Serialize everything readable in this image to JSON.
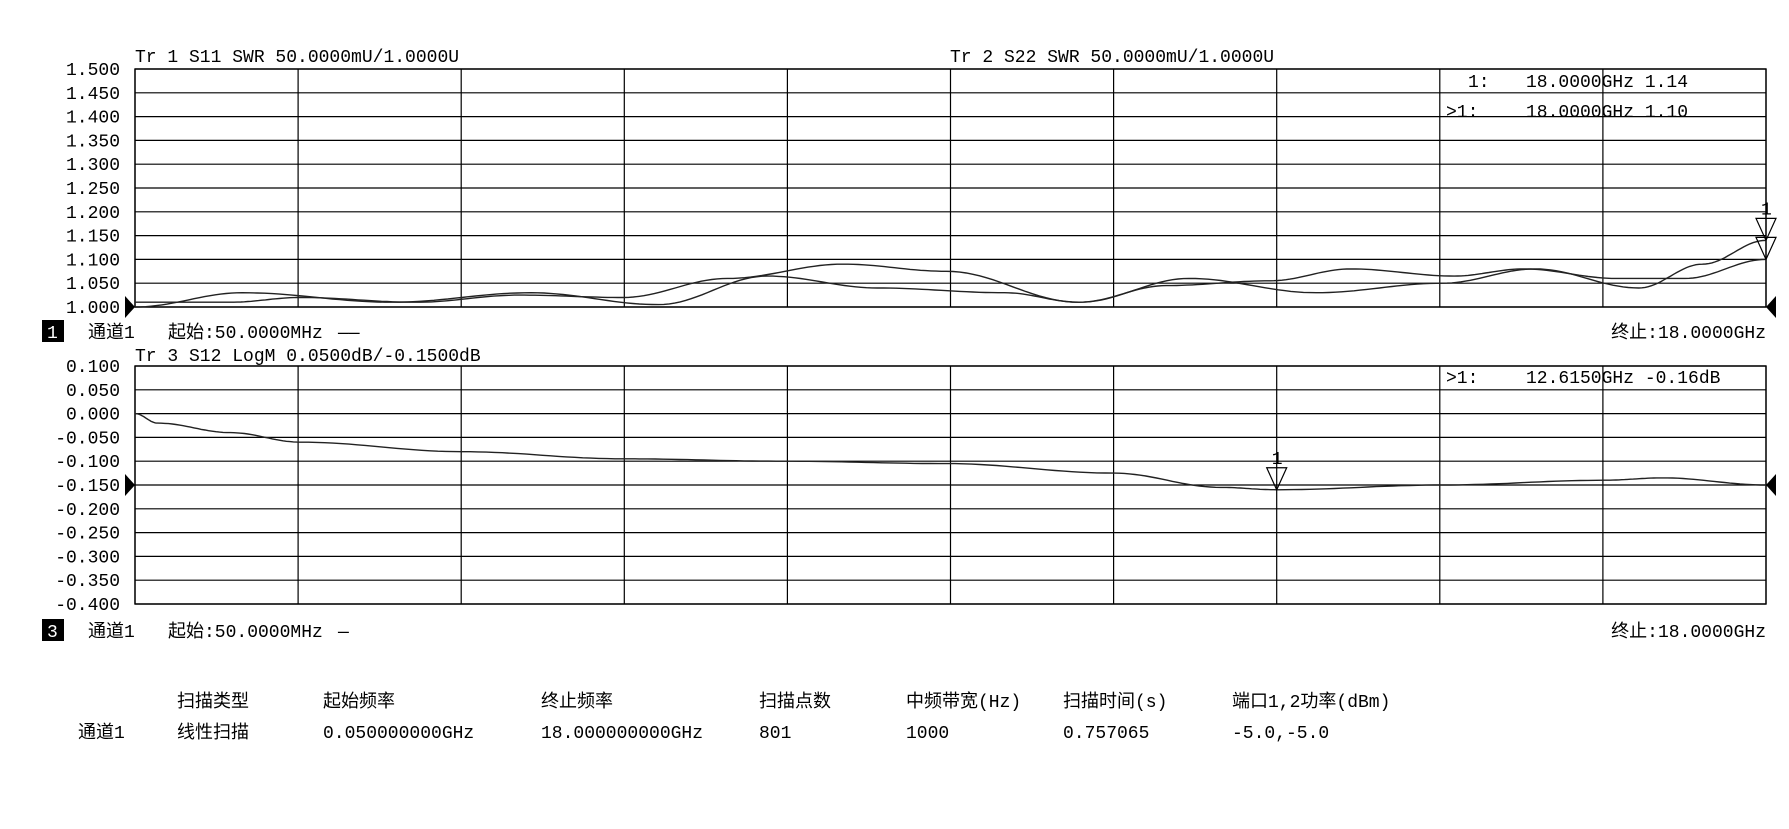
{
  "chart_data": [
    {
      "type": "line",
      "titles": [
        "Tr 1  S11 SWR 50.0000mU/1.0000U",
        "Tr 2  S22 SWR 50.0000mU/1.0000U"
      ],
      "xlabel": "",
      "ylabel": "",
      "xlim": [
        0.05,
        18.0
      ],
      "ylim": [
        1.0,
        1.5
      ],
      "grid": true,
      "y_ticks": [
        "1.500",
        "1.450",
        "1.400",
        "1.350",
        "1.300",
        "1.250",
        "1.200",
        "1.150",
        "1.100",
        "1.050",
        "1.000"
      ],
      "reference_level": 1.0,
      "channel_box": "1",
      "channel_label": "通道1",
      "start_label": "起始:50.0000MHz",
      "start_line_style": "——",
      "stop_label": "终止:18.0000GHz",
      "marker_readouts": [
        {
          "prefix": "1:",
          "text": "18.0000GHz 1.14"
        },
        {
          "prefix": ">1:",
          "text": "18.0000GHz 1.10"
        }
      ],
      "markers": [
        {
          "label": "1",
          "x": 18.0,
          "y": 1.14
        },
        {
          "label": "1",
          "x": 18.0,
          "y": 1.1
        }
      ],
      "series": [
        {
          "name": "Tr 1  S11",
          "x": [
            0.05,
            1.23,
            2.88,
            4.41,
            5.81,
            7.01,
            8.22,
            9.62,
            10.44,
            11.65,
            13.05,
            14.44,
            15.46,
            16.6,
            17.3,
            18.0
          ],
          "y": [
            1.0,
            1.03,
            1.01,
            1.03,
            1.005,
            1.065,
            1.04,
            1.03,
            1.01,
            1.06,
            1.03,
            1.05,
            1.08,
            1.04,
            1.09,
            1.14
          ]
        },
        {
          "name": "Tr 2  S22",
          "x": [
            0.05,
            1.1,
            1.87,
            3.14,
            4.28,
            5.42,
            6.57,
            7.84,
            8.98,
            10.44,
            11.4,
            12.54,
            13.43,
            14.57,
            15.33,
            16.35,
            17.11,
            18.0
          ],
          "y": [
            1.01,
            1.01,
            1.02,
            1.01,
            1.025,
            1.02,
            1.06,
            1.09,
            1.075,
            1.01,
            1.045,
            1.055,
            1.08,
            1.065,
            1.08,
            1.06,
            1.06,
            1.1
          ]
        }
      ]
    },
    {
      "type": "line",
      "titles": [
        "Tr 3  S12 LogM 0.0500dB/-0.1500dB"
      ],
      "xlabel": "",
      "ylabel": "",
      "xlim": [
        0.05,
        18.0
      ],
      "ylim": [
        -0.4,
        0.1
      ],
      "grid": true,
      "y_ticks": [
        "0.100",
        "0.050",
        "0.000",
        "-0.050",
        "-0.100",
        "-0.150",
        "-0.200",
        "-0.250",
        "-0.300",
        "-0.350",
        "-0.400"
      ],
      "reference_level": -0.15,
      "channel_box": "3",
      "channel_label": "通道1",
      "start_label": "起始:50.0000MHz",
      "start_line_style": "—",
      "stop_label": "终止:18.0000GHz",
      "marker_readouts": [
        {
          "prefix": ">1:",
          "text": "12.6150GHz -0.16dB"
        }
      ],
      "markers": [
        {
          "label": "1",
          "x": 12.615,
          "y": -0.16
        }
      ],
      "series": [
        {
          "name": "Tr 3  S12",
          "x": [
            0.05,
            0.3,
            1.1,
            1.87,
            3.65,
            5.42,
            7.2,
            8.98,
            10.82,
            12.0,
            12.615,
            14.44,
            16.22,
            16.86,
            18.0
          ],
          "y": [
            0.0,
            -0.02,
            -0.04,
            -0.06,
            -0.08,
            -0.095,
            -0.1,
            -0.105,
            -0.125,
            -0.155,
            -0.16,
            -0.15,
            -0.14,
            -0.135,
            -0.15
          ]
        }
      ]
    }
  ],
  "summary_table": {
    "headers": [
      "扫描类型",
      "起始频率",
      "终止频率",
      "扫描点数",
      "中频带宽(Hz)",
      "扫描时间(s)",
      "端口1,2功率(dBm)"
    ],
    "row_label": "通道1",
    "row": [
      "线性扫描",
      "0.050000000GHz",
      "18.000000000GHz",
      "801",
      "1000",
      "0.757065",
      "-5.0,-5.0"
    ]
  }
}
